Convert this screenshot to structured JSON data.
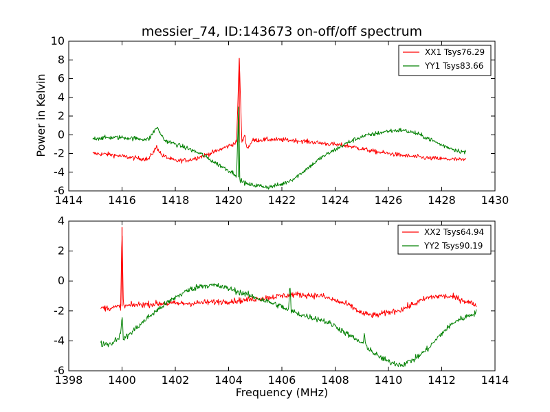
{
  "chart_data": [
    {
      "type": "line",
      "title": "messier_74, ID:143673 on-off/off spectrum",
      "xlabel": "",
      "ylabel": "Power in Kelvin",
      "xlim": [
        1414,
        1430
      ],
      "ylim": [
        -6,
        10
      ],
      "xticks": [
        1414,
        1416,
        1418,
        1420,
        1422,
        1424,
        1426,
        1428,
        1430
      ],
      "yticks": [
        -6,
        -4,
        -2,
        0,
        2,
        4,
        6,
        8,
        10
      ],
      "legend_position": "top-right",
      "grid": false,
      "series": [
        {
          "name": "XX1 Tsys76.29",
          "color": "#ff0000",
          "x_range": [
            1414.9,
            1428.9
          ],
          "points": [
            [
              1414.9,
              -2.0
            ],
            [
              1415.5,
              -2.1
            ],
            [
              1416.0,
              -2.3
            ],
            [
              1416.5,
              -2.5
            ],
            [
              1417.0,
              -2.6
            ],
            [
              1417.3,
              -1.3
            ],
            [
              1417.5,
              -2.2
            ],
            [
              1418.0,
              -2.8
            ],
            [
              1418.5,
              -2.7
            ],
            [
              1419.0,
              -2.3
            ],
            [
              1419.5,
              -1.8
            ],
            [
              1420.0,
              -1.2
            ],
            [
              1420.3,
              -0.8
            ],
            [
              1420.4,
              8.2
            ],
            [
              1420.5,
              -0.9
            ],
            [
              1420.6,
              0.0
            ],
            [
              1420.7,
              -1.5
            ],
            [
              1420.9,
              -0.6
            ],
            [
              1421.5,
              -0.5
            ],
            [
              1422.5,
              -0.6
            ],
            [
              1423.5,
              -0.9
            ],
            [
              1424.5,
              -1.2
            ],
            [
              1425.5,
              -1.8
            ],
            [
              1426.5,
              -2.2
            ],
            [
              1427.5,
              -2.5
            ],
            [
              1428.9,
              -2.7
            ]
          ],
          "noise": 0.12
        },
        {
          "name": "YY1 Tsys83.66",
          "color": "#008000",
          "x_range": [
            1414.9,
            1428.9
          ],
          "points": [
            [
              1414.9,
              -0.4
            ],
            [
              1415.5,
              -0.3
            ],
            [
              1416.0,
              -0.3
            ],
            [
              1416.5,
              -0.4
            ],
            [
              1417.0,
              -0.5
            ],
            [
              1417.3,
              0.8
            ],
            [
              1417.6,
              -0.6
            ],
            [
              1418.0,
              -1.0
            ],
            [
              1418.5,
              -1.5
            ],
            [
              1419.0,
              -2.1
            ],
            [
              1419.5,
              -3.0
            ],
            [
              1420.0,
              -3.8
            ],
            [
              1420.3,
              -4.3
            ],
            [
              1420.38,
              3.0
            ],
            [
              1420.42,
              -4.8
            ],
            [
              1420.7,
              -5.3
            ],
            [
              1421.0,
              -5.4
            ],
            [
              1421.5,
              -5.6
            ],
            [
              1422.0,
              -5.3
            ],
            [
              1422.5,
              -4.6
            ],
            [
              1423.0,
              -3.5
            ],
            [
              1423.5,
              -2.4
            ],
            [
              1424.0,
              -1.6
            ],
            [
              1424.5,
              -0.8
            ],
            [
              1425.0,
              -0.2
            ],
            [
              1425.5,
              0.1
            ],
            [
              1426.0,
              0.4
            ],
            [
              1426.5,
              0.5
            ],
            [
              1427.0,
              0.2
            ],
            [
              1427.5,
              -0.4
            ],
            [
              1428.0,
              -1.1
            ],
            [
              1428.5,
              -1.6
            ],
            [
              1428.9,
              -1.9
            ]
          ],
          "noise": 0.12
        }
      ]
    },
    {
      "type": "line",
      "title": "",
      "xlabel": "Frequency (MHz)",
      "ylabel": "",
      "xlim": [
        1398,
        1414
      ],
      "ylim": [
        -6,
        4
      ],
      "xticks": [
        1398,
        1400,
        1402,
        1404,
        1406,
        1408,
        1410,
        1412,
        1414
      ],
      "yticks": [
        -6,
        -4,
        -2,
        0,
        2,
        4
      ],
      "legend_position": "top-right",
      "grid": false,
      "series": [
        {
          "name": "XX2 Tsys64.94",
          "color": "#ff0000",
          "x_range": [
            1399.2,
            1413.3
          ],
          "points": [
            [
              1399.2,
              -1.8
            ],
            [
              1399.6,
              -1.8
            ],
            [
              1399.95,
              -1.7
            ],
            [
              1400.0,
              3.6
            ],
            [
              1400.05,
              -1.7
            ],
            [
              1400.5,
              -1.6
            ],
            [
              1401.5,
              -1.5
            ],
            [
              1402.5,
              -1.5
            ],
            [
              1403.5,
              -1.4
            ],
            [
              1404.5,
              -1.3
            ],
            [
              1405.5,
              -1.1
            ],
            [
              1406.5,
              -0.9
            ],
            [
              1407.5,
              -1.0
            ],
            [
              1408.5,
              -1.6
            ],
            [
              1409.05,
              -2.2
            ],
            [
              1409.1,
              -2.2
            ],
            [
              1409.5,
              -2.3
            ],
            [
              1410.0,
              -2.1
            ],
            [
              1410.5,
              -1.9
            ],
            [
              1411.0,
              -1.5
            ],
            [
              1411.5,
              -1.1
            ],
            [
              1412.0,
              -1.0
            ],
            [
              1412.5,
              -1.1
            ],
            [
              1413.3,
              -1.6
            ]
          ],
          "noise": 0.1
        },
        {
          "name": "YY2 Tsys90.19",
          "color": "#008000",
          "x_range": [
            1399.2,
            1413.3
          ],
          "points": [
            [
              1399.2,
              -4.2
            ],
            [
              1399.6,
              -4.2
            ],
            [
              1399.95,
              -3.6
            ],
            [
              1400.0,
              -2.2
            ],
            [
              1400.05,
              -3.9
            ],
            [
              1400.5,
              -3.2
            ],
            [
              1401.0,
              -2.4
            ],
            [
              1401.5,
              -1.7
            ],
            [
              1402.0,
              -1.1
            ],
            [
              1402.5,
              -0.6
            ],
            [
              1403.0,
              -0.3
            ],
            [
              1403.5,
              -0.3
            ],
            [
              1404.0,
              -0.5
            ],
            [
              1404.5,
              -0.8
            ],
            [
              1405.0,
              -1.1
            ],
            [
              1405.5,
              -1.4
            ],
            [
              1406.0,
              -1.7
            ],
            [
              1406.25,
              -2.0
            ],
            [
              1406.3,
              -0.2
            ],
            [
              1406.35,
              -2.0
            ],
            [
              1406.8,
              -2.3
            ],
            [
              1407.5,
              -2.6
            ],
            [
              1408.0,
              -3.0
            ],
            [
              1408.5,
              -3.6
            ],
            [
              1409.05,
              -4.2
            ],
            [
              1409.1,
              -3.6
            ],
            [
              1409.15,
              -4.3
            ],
            [
              1409.5,
              -4.9
            ],
            [
              1410.0,
              -5.4
            ],
            [
              1410.5,
              -5.6
            ],
            [
              1411.0,
              -5.2
            ],
            [
              1411.5,
              -4.5
            ],
            [
              1412.0,
              -3.5
            ],
            [
              1412.5,
              -2.7
            ],
            [
              1413.3,
              -2.1
            ]
          ],
          "noise": 0.1
        }
      ]
    }
  ]
}
